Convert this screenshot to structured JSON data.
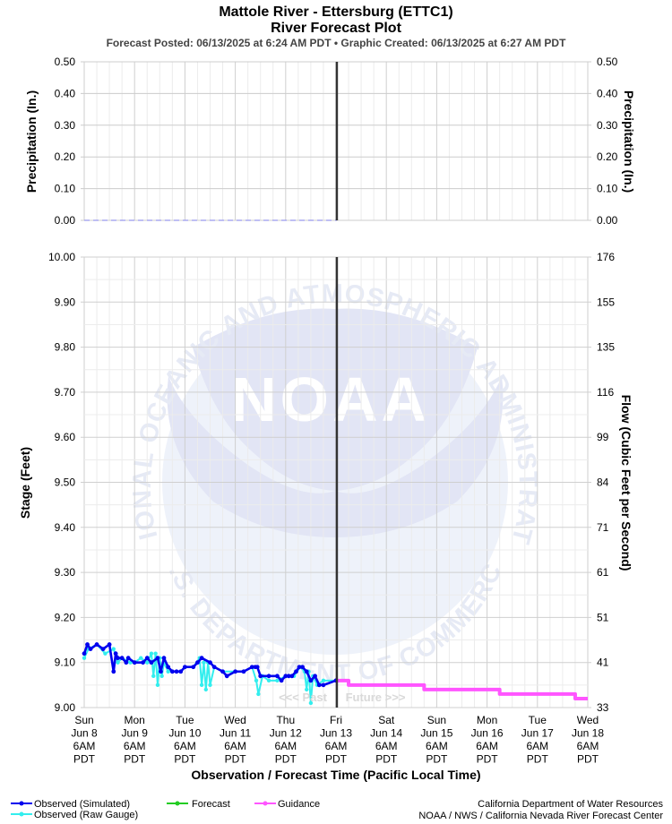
{
  "header": {
    "title_line1": "Mattole River - Ettersburg (ETTC1)",
    "title_line2": "River Forecast Plot",
    "subtitle": "Forecast Posted: 06/13/2025 at 6:24 AM PDT  •  Graphic Created: 06/13/2025 at 6:27 AM PDT"
  },
  "watermark": {
    "ring_text_top": "NATIONAL OCEANIC AND ATMOSPHERIC ADMINISTRATION",
    "ring_text_bottom": "U.S. DEPARTMENT OF COMMERCE",
    "logo_text": "NOAA",
    "colors": {
      "light": "#e6ecf8",
      "dark": "#d8dcf0"
    }
  },
  "markers": {
    "past": "<<< Past",
    "future": "Future >>>"
  },
  "legend": {
    "observed_simulated": "Observed (Simulated)",
    "observed_raw": "Observed (Raw Gauge)",
    "forecast": "Forecast",
    "guidance": "Guidance"
  },
  "credits": {
    "line1": "California Department of Water Resources",
    "line2": "NOAA / NWS / California Nevada River Forecast Center"
  },
  "colors": {
    "observed_simulated": "#0000ee",
    "observed_raw": "#33eeee",
    "forecast": "#22cc22",
    "guidance": "#ff55ff",
    "grid": "#cccccc",
    "now_line": "#333333",
    "precip": "#9999ee"
  },
  "chart_data": [
    {
      "type": "line",
      "panel": "precipitation",
      "ylabel_left": "Precipitation (In.)",
      "ylabel_right": "Precipitation (In.)",
      "ylim": [
        0,
        0.5
      ],
      "y_ticks": [
        "0.00",
        "0.10",
        "0.20",
        "0.30",
        "0.40",
        "0.50"
      ],
      "grid": true,
      "series": [
        {
          "x": [
            "2025-06-08 06:00",
            "2025-06-13 06:24"
          ],
          "values": [
            0,
            0
          ]
        }
      ]
    },
    {
      "type": "line",
      "panel": "stage",
      "xlabel": "Observation / Forecast Time (Pacific Local Time)",
      "ylabel_left": "Stage (Feet)",
      "ylabel_right": "Flow (Cubic Feet per Second)",
      "ylim": [
        9.0,
        10.0
      ],
      "y_ticks": [
        "9.00",
        "9.10",
        "9.20",
        "9.30",
        "9.40",
        "9.50",
        "9.60",
        "9.70",
        "9.80",
        "9.90",
        "10.00"
      ],
      "flow_ticks": [
        "33",
        "41",
        "51",
        "61",
        "71",
        "84",
        "99",
        "116",
        "135",
        "155",
        "176"
      ],
      "x_ticks": [
        {
          "day": "Sun",
          "date": "Jun 8",
          "time": "6AM",
          "tz": "PDT"
        },
        {
          "day": "Mon",
          "date": "Jun 9",
          "time": "6AM",
          "tz": "PDT"
        },
        {
          "day": "Tue",
          "date": "Jun 10",
          "time": "6AM",
          "tz": "PDT"
        },
        {
          "day": "Wed",
          "date": "Jun 11",
          "time": "6AM",
          "tz": "PDT"
        },
        {
          "day": "Thu",
          "date": "Jun 12",
          "time": "6AM",
          "tz": "PDT"
        },
        {
          "day": "Fri",
          "date": "Jun 13",
          "time": "6AM",
          "tz": "PDT"
        },
        {
          "day": "Sat",
          "date": "Jun 14",
          "time": "6AM",
          "tz": "PDT"
        },
        {
          "day": "Sun",
          "date": "Jun 15",
          "time": "6AM",
          "tz": "PDT"
        },
        {
          "day": "Mon",
          "date": "Jun 16",
          "time": "6AM",
          "tz": "PDT"
        },
        {
          "day": "Tue",
          "date": "Jun 17",
          "time": "6AM",
          "tz": "PDT"
        },
        {
          "day": "Wed",
          "date": "Jun 18",
          "time": "6AM",
          "tz": "PDT"
        }
      ],
      "x_range": [
        "2025-06-08 06:00",
        "2025-06-18 06:00"
      ],
      "now": "2025-06-13 06:24",
      "grid": true,
      "series": [
        {
          "name": "Observed (Simulated)",
          "x": [
            "2025-06-08 06:00",
            "2025-06-08 07:30",
            "2025-06-08 09:00",
            "2025-06-08 12:00",
            "2025-06-08 15:00",
            "2025-06-08 18:00",
            "2025-06-08 20:00",
            "2025-06-08 21:00",
            "2025-06-08 22:00",
            "2025-06-09 00:00",
            "2025-06-09 02:00",
            "2025-06-09 03:00",
            "2025-06-09 06:00",
            "2025-06-09 10:00",
            "2025-06-09 12:00",
            "2025-06-09 14:00",
            "2025-06-09 17:00",
            "2025-06-09 18:30",
            "2025-06-09 20:00",
            "2025-06-09 22:00",
            "2025-06-10 00:00",
            "2025-06-10 02:00",
            "2025-06-10 04:00",
            "2025-06-10 06:00",
            "2025-06-10 10:00",
            "2025-06-10 12:00",
            "2025-06-10 14:00",
            "2025-06-10 18:00",
            "2025-06-10 20:00",
            "2025-06-11 00:00",
            "2025-06-11 02:00",
            "2025-06-11 06:00",
            "2025-06-11 10:00",
            "2025-06-11 14:00",
            "2025-06-11 15:30",
            "2025-06-11 16:30",
            "2025-06-11 18:00",
            "2025-06-11 22:00",
            "2025-06-12 02:00",
            "2025-06-12 04:00",
            "2025-06-12 06:00",
            "2025-06-12 07:30",
            "2025-06-12 09:00",
            "2025-06-12 11:00",
            "2025-06-12 12:30",
            "2025-06-12 14:00",
            "2025-06-12 16:00",
            "2025-06-12 18:00",
            "2025-06-12 20:00",
            "2025-06-12 22:00",
            "2025-06-13 00:00",
            "2025-06-13 06:00"
          ],
          "values": [
            9.12,
            9.14,
            9.13,
            9.14,
            9.13,
            9.14,
            9.08,
            9.12,
            9.11,
            9.11,
            9.1,
            9.11,
            9.1,
            9.1,
            9.11,
            9.1,
            9.11,
            9.08,
            9.11,
            9.09,
            9.08,
            9.08,
            9.08,
            9.09,
            9.09,
            9.1,
            9.11,
            9.1,
            9.09,
            9.08,
            9.07,
            9.08,
            9.08,
            9.09,
            9.09,
            9.09,
            9.07,
            9.07,
            9.07,
            9.06,
            9.07,
            9.07,
            9.07,
            9.08,
            9.09,
            9.09,
            9.08,
            9.06,
            9.07,
            9.05,
            9.05,
            9.06
          ]
        },
        {
          "name": "Observed (Raw Gauge)",
          "x": [
            "2025-06-08 06:00",
            "2025-06-08 08:00",
            "2025-06-08 12:00",
            "2025-06-08 16:00",
            "2025-06-08 20:00",
            "2025-06-08 22:00",
            "2025-06-09 00:00",
            "2025-06-09 04:00",
            "2025-06-09 06:00",
            "2025-06-09 09:00",
            "2025-06-09 12:00",
            "2025-06-09 14:00",
            "2025-06-09 15:00",
            "2025-06-09 16:00",
            "2025-06-09 17:00",
            "2025-06-09 18:00",
            "2025-06-09 19:00",
            "2025-06-09 20:00",
            "2025-06-09 22:00",
            "2025-06-10 00:00",
            "2025-06-10 04:00",
            "2025-06-10 06:00",
            "2025-06-10 10:00",
            "2025-06-10 13:00",
            "2025-06-10 14:00",
            "2025-06-10 15:00",
            "2025-06-10 16:00",
            "2025-06-10 17:00",
            "2025-06-10 18:00",
            "2025-06-10 20:00",
            "2025-06-11 00:00",
            "2025-06-11 06:00",
            "2025-06-11 10:00",
            "2025-06-11 14:00",
            "2025-06-11 16:00",
            "2025-06-11 17:00",
            "2025-06-11 19:00",
            "2025-06-11 22:00",
            "2025-06-12 02:00",
            "2025-06-12 06:00",
            "2025-06-12 10:00",
            "2025-06-12 13:00",
            "2025-06-12 15:00",
            "2025-06-12 16:00",
            "2025-06-12 17:00",
            "2025-06-12 18:00",
            "2025-06-12 19:00",
            "2025-06-12 21:00",
            "2025-06-13 00:00",
            "2025-06-13 06:00"
          ],
          "values": [
            9.11,
            9.13,
            9.14,
            9.12,
            9.13,
            9.1,
            9.11,
            9.1,
            9.1,
            9.11,
            9.1,
            9.12,
            9.07,
            9.12,
            9.05,
            9.11,
            9.07,
            9.1,
            9.08,
            9.08,
            9.08,
            9.09,
            9.09,
            9.11,
            9.05,
            9.1,
            9.04,
            9.1,
            9.05,
            9.09,
            9.08,
            9.08,
            9.08,
            9.09,
            9.06,
            9.03,
            9.07,
            9.06,
            9.06,
            9.07,
            9.07,
            9.09,
            9.08,
            9.04,
            9.08,
            9.01,
            9.07,
            9.05,
            9.06,
            9.06
          ]
        },
        {
          "name": "Guidance",
          "x": [
            "2025-06-13 06:24",
            "2025-06-13 12:00",
            "2025-06-14 00:00",
            "2025-06-14 12:00",
            "2025-06-15 00:00",
            "2025-06-15 12:00",
            "2025-06-16 00:00",
            "2025-06-16 12:00",
            "2025-06-17 00:00",
            "2025-06-17 12:00",
            "2025-06-18 00:00",
            "2025-06-18 06:00"
          ],
          "values": [
            9.06,
            9.05,
            9.05,
            9.05,
            9.04,
            9.04,
            9.04,
            9.03,
            9.03,
            9.03,
            9.02,
            9.02
          ]
        }
      ]
    }
  ]
}
